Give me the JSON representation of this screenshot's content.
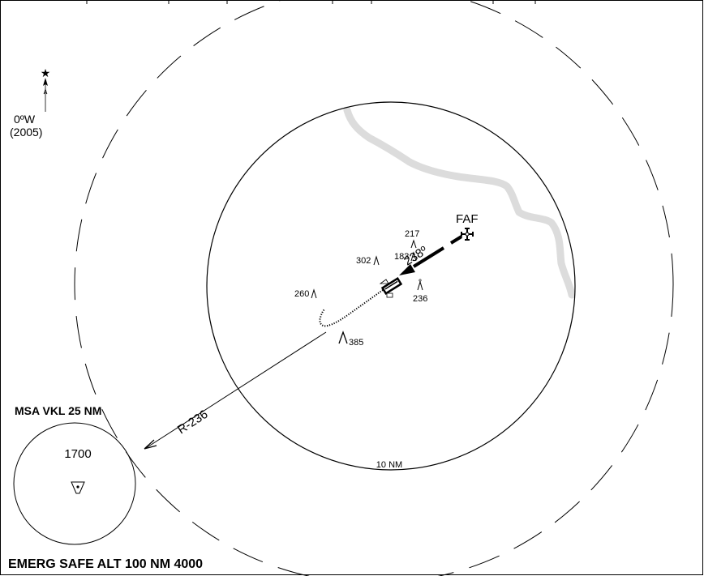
{
  "compass": {
    "variation": "0ºW",
    "year": "(2005)"
  },
  "circles": {
    "inner_label": "10 NM"
  },
  "obstacles": [
    {
      "id": "217",
      "label": "217"
    },
    {
      "id": "183",
      "label": "183"
    },
    {
      "id": "302",
      "label": "302"
    },
    {
      "id": "236",
      "label": "236"
    },
    {
      "id": "260",
      "label": "260"
    },
    {
      "id": "385",
      "label": "385"
    }
  ],
  "fix": {
    "label": "FAF"
  },
  "approach": {
    "course_label": "238º"
  },
  "radial": {
    "label": "R-236"
  },
  "msa": {
    "title": "MSA VKL 25 NM",
    "altitude": "1700"
  },
  "footer": {
    "emergency_altitude": "EMERG SAFE ALT 100 NM 4000"
  },
  "colors": {
    "ink": "#000000",
    "river": "#dcdcdc",
    "background": "#ffffff"
  }
}
